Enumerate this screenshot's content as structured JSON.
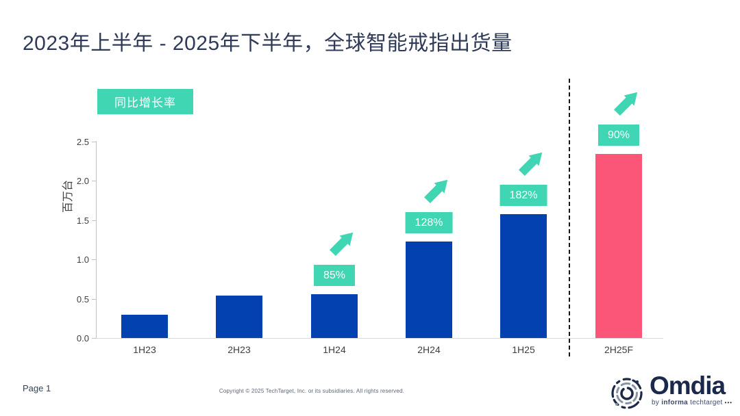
{
  "page": {
    "title": "2023年上半年 - 2025年下半年，全球智能戒指出货量",
    "footer": {
      "page_label": "Page 1",
      "copyright": "Copyright © 2025 TechTarget, Inc. or its subsidiaries. All rights reserved."
    },
    "brand": {
      "name": "Omdia",
      "byline_prefix": "by ",
      "byline_bold": "informa",
      "byline_rest": " techtarget ",
      "byline_dots": "•••"
    }
  },
  "colors": {
    "bar_blue": "#0340b0",
    "bar_pink": "#fb5578",
    "teal": "#40d6b4",
    "title_navy": "#2e3a57",
    "axis_gray": "#c2c2c2",
    "text_dark": "#3f3f3f",
    "brand_navy": "#1b2a4a"
  },
  "chart_data": {
    "type": "bar",
    "title": "2023年上半年 - 2025年下半年，全球智能戒指出货量",
    "legend": "同比增长率",
    "legend_position": "top-left",
    "xlabel": "",
    "ylabel": "百万台",
    "ylim": [
      0,
      2.5
    ],
    "yticks": [
      "0.0",
      "0.5",
      "1.0",
      "1.5",
      "2.0",
      "2.5"
    ],
    "grid": false,
    "categories": [
      "1H23",
      "2H23",
      "1H24",
      "2H24",
      "1H25",
      "2H25F"
    ],
    "values": [
      0.3,
      0.54,
      0.56,
      1.23,
      1.58,
      2.34
    ],
    "growth_labels": [
      null,
      null,
      "85%",
      "128%",
      "182%",
      "90%"
    ],
    "bar_color_keys": [
      "blue",
      "blue",
      "blue",
      "blue",
      "blue",
      "pink"
    ],
    "forecast_separator_before_index": 5
  }
}
